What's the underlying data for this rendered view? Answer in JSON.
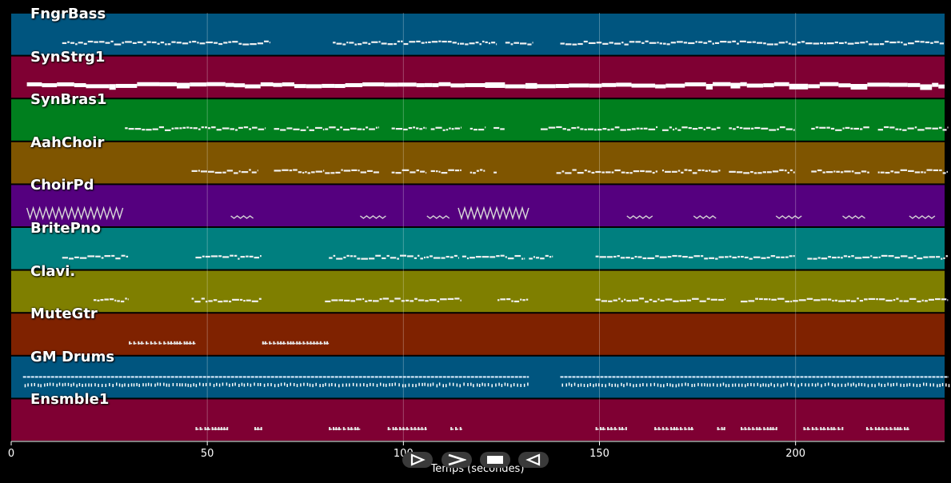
{
  "chart_data": {
    "type": "piano-roll",
    "xlabel": "Temps (secondes)",
    "xlim": [
      0,
      238
    ],
    "xticks": [
      0,
      50,
      100,
      150,
      200
    ],
    "grid": true,
    "tracks": [
      {
        "name": "FngrBass",
        "color": "#00557f",
        "pattern": "pitch-line",
        "segments": [
          [
            13,
            66
          ],
          [
            82,
            124
          ],
          [
            126,
            133
          ],
          [
            140,
            238
          ]
        ]
      },
      {
        "name": "SynStrg1",
        "color": "#7f0033",
        "pattern": "thick-line",
        "segments": [
          [
            4,
            238
          ]
        ]
      },
      {
        "name": "SynBras1",
        "color": "#007f1e",
        "pattern": "pitch-line",
        "segments": [
          [
            29,
            51
          ],
          [
            51,
            65
          ],
          [
            67,
            80
          ],
          [
            80,
            94
          ],
          [
            97,
            106
          ],
          [
            107,
            115
          ],
          [
            117,
            121
          ],
          [
            123,
            126
          ],
          [
            135,
            147
          ],
          [
            147,
            165
          ],
          [
            166,
            181
          ],
          [
            183,
            200
          ],
          [
            204,
            219
          ],
          [
            221,
            239
          ]
        ]
      },
      {
        "name": "AahChoir",
        "color": "#7f5500",
        "pattern": "pitch-line",
        "segments": [
          [
            46,
            55
          ],
          [
            55,
            63
          ],
          [
            67,
            80
          ],
          [
            80,
            94
          ],
          [
            97,
            106
          ],
          [
            107,
            115
          ],
          [
            117,
            121
          ],
          [
            123,
            124
          ],
          [
            139,
            147
          ],
          [
            147,
            165
          ],
          [
            166,
            181
          ],
          [
            183,
            200
          ],
          [
            204,
            219
          ],
          [
            221,
            239
          ]
        ]
      },
      {
        "name": "ChoirPd",
        "color": "#55007f",
        "pattern": "zigzag",
        "segments": [
          [
            4,
            29
          ],
          [
            56,
            62
          ],
          [
            89,
            96
          ],
          [
            106,
            112
          ],
          [
            114,
            132
          ],
          [
            157,
            164
          ],
          [
            174,
            180
          ],
          [
            195,
            202
          ],
          [
            212,
            218
          ],
          [
            229,
            236
          ]
        ]
      },
      {
        "name": "BritePno",
        "color": "#007f7f",
        "pattern": "pitch-line",
        "segments": [
          [
            13,
            30
          ],
          [
            47,
            64
          ],
          [
            81,
            114
          ],
          [
            115,
            131
          ],
          [
            132,
            138
          ],
          [
            149,
            200
          ],
          [
            203,
            239
          ]
        ]
      },
      {
        "name": "Clavi.",
        "color": "#7f7f00",
        "pattern": "pitch-line",
        "segments": [
          [
            21,
            30
          ],
          [
            46,
            64
          ],
          [
            80,
            115
          ],
          [
            124,
            132
          ],
          [
            149,
            182
          ],
          [
            186,
            239
          ]
        ]
      },
      {
        "name": "MuteGtr",
        "color": "#7f2200",
        "pattern": "dashes",
        "segments": [
          [
            30,
            47
          ],
          [
            64,
            81
          ]
        ]
      },
      {
        "name": "GM Drums",
        "color": "#00557f",
        "pattern": "drums",
        "segments": [
          [
            3,
            132
          ],
          [
            140,
            239
          ]
        ]
      },
      {
        "name": "Ensmble1",
        "color": "#7f0033",
        "pattern": "dashes",
        "segments": [
          [
            47,
            55
          ],
          [
            62,
            64
          ],
          [
            81,
            89
          ],
          [
            96,
            106
          ],
          [
            112,
            115
          ],
          [
            149,
            157
          ],
          [
            164,
            174
          ],
          [
            180,
            182
          ],
          [
            186,
            195
          ],
          [
            202,
            212
          ],
          [
            218,
            229
          ]
        ]
      }
    ]
  },
  "controls": {
    "play_label": "⊳",
    "next_label": ">",
    "stop_label": "■",
    "prev_label": "⊲"
  }
}
